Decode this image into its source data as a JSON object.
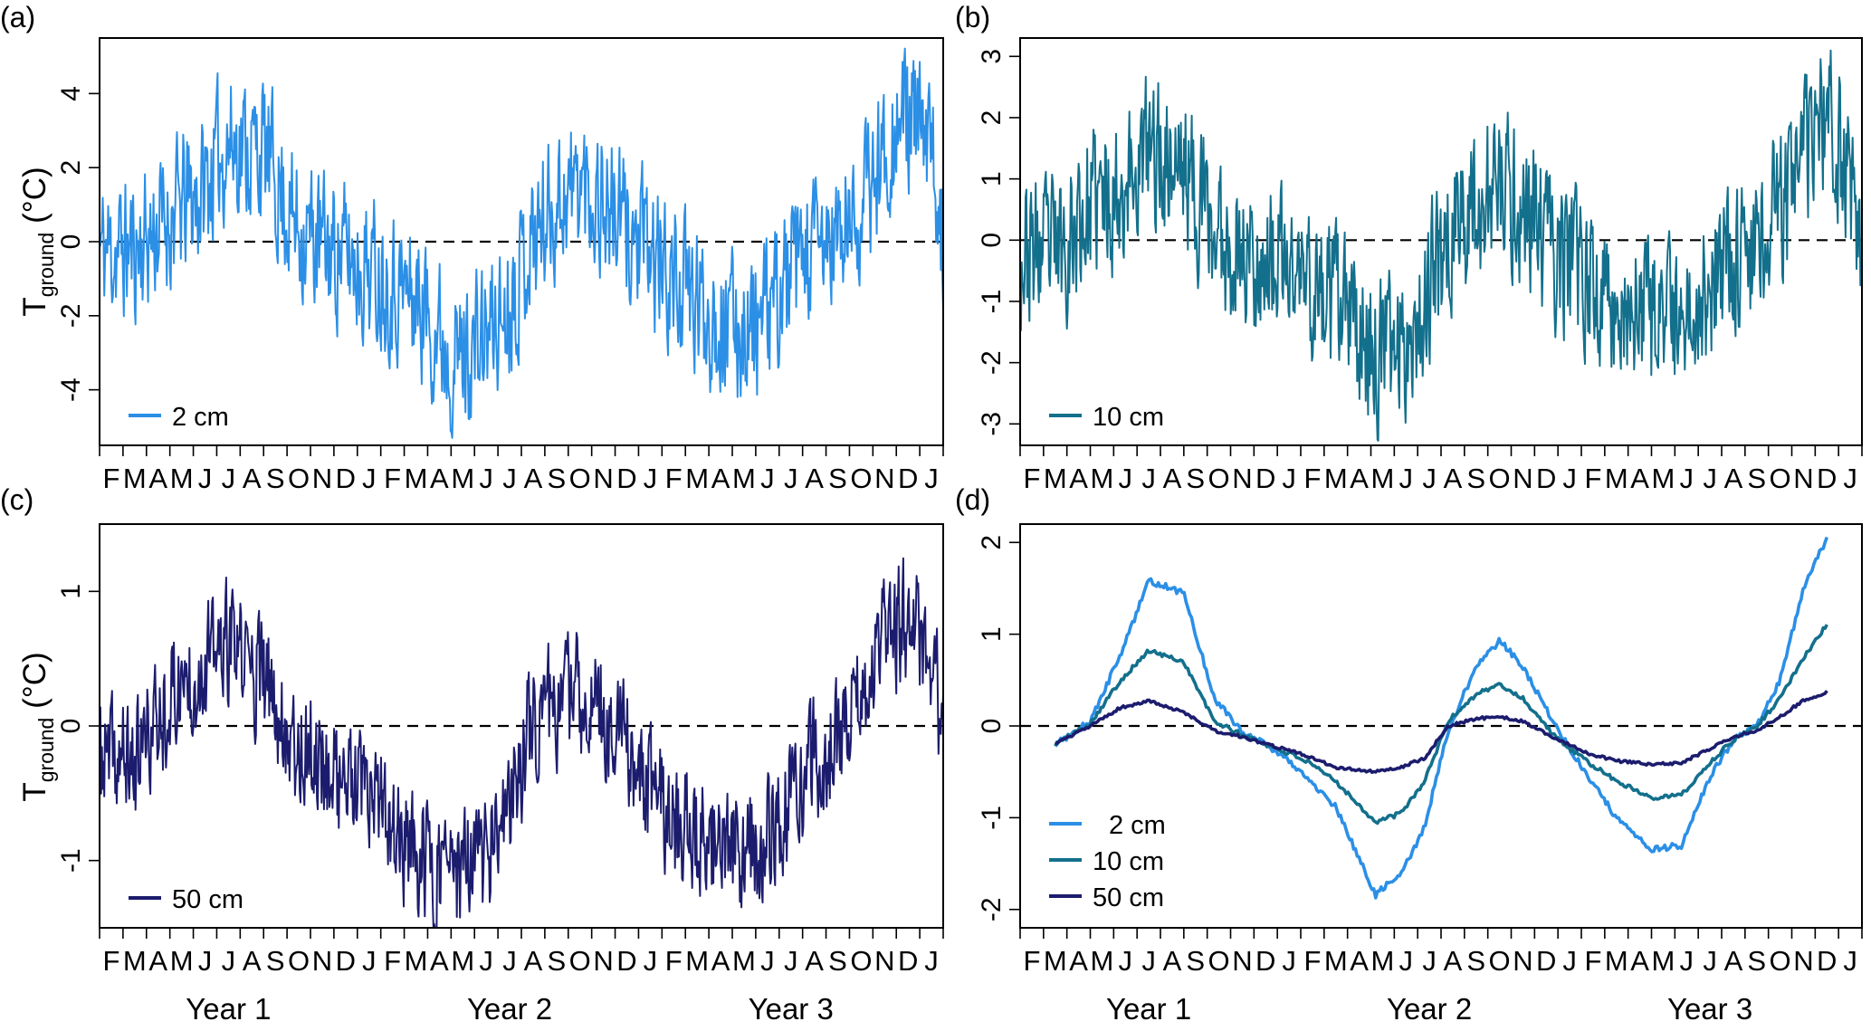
{
  "colors": {
    "d2": "#2b8fe6",
    "d10": "#13708c",
    "d50": "#1c1c6e",
    "axis": "#000000",
    "zero_line": "#000000"
  },
  "y_label": {
    "main": "T",
    "sub": "ground",
    "unit": "(°C)"
  },
  "months": [
    "F",
    "M",
    "A",
    "M",
    "J",
    "J",
    "A",
    "S",
    "O",
    "N",
    "D",
    "J",
    "F",
    "M",
    "A",
    "M",
    "J",
    "J",
    "A",
    "S",
    "O",
    "N",
    "D",
    "J",
    "F",
    "M",
    "A",
    "M",
    "J",
    "J",
    "A",
    "S",
    "O",
    "N",
    "D",
    "J"
  ],
  "years": [
    "Year 1",
    "Year 2",
    "Year 3"
  ],
  "chart_data": [
    {
      "panel": "(a)",
      "type": "line",
      "xlim": [
        0,
        36
      ],
      "ylim": [
        -5.5,
        5.5
      ],
      "yticks": [
        -4,
        -2,
        0,
        2,
        4
      ],
      "ytick_labels": [
        "-4",
        "-2",
        "0",
        "2",
        "4"
      ],
      "reference_line": 0,
      "legend": "bottom-left",
      "series": [
        {
          "name": "2 cm",
          "color": "#2b8fe6",
          "scale": 1.7,
          "seed": 11,
          "noise": 1.75,
          "x": [
            0,
            1.5,
            3,
            4.3,
            5.5,
            7,
            8.3,
            9.5,
            10.5,
            12,
            13.5,
            15.2,
            16.3,
            17.3,
            18.3,
            19.5,
            20.5,
            21.5,
            23,
            24.3,
            25.5,
            27,
            28.3,
            29.5,
            30.5,
            31.5,
            32.5,
            33.5,
            34.5,
            35.5,
            36
          ],
          "y": [
            -0.12,
            -0.12,
            0.4,
            0.78,
            1.58,
            1.45,
            0.3,
            -0.06,
            -0.2,
            -0.5,
            -0.88,
            -1.84,
            -1.6,
            -1.1,
            -0.05,
            0.65,
            0.93,
            0.65,
            -0.05,
            -0.55,
            -1.0,
            -1.35,
            -1.3,
            -0.55,
            -0.15,
            0.0,
            0.5,
            1.5,
            2.05,
            1.3,
            0.2
          ]
        }
      ]
    },
    {
      "panel": "(b)",
      "type": "line",
      "xlim": [
        0,
        36
      ],
      "ylim": [
        -3.35,
        3.3
      ],
      "yticks": [
        -3,
        -2,
        -1,
        0,
        1,
        2,
        3
      ],
      "ytick_labels": [
        "-3",
        "-2",
        "-1",
        "0",
        "1",
        "2",
        "3"
      ],
      "reference_line": 0,
      "legend": "bottom-left",
      "series": [
        {
          "name": "10 cm",
          "color": "#13708c",
          "scale": 1.75,
          "seed": 23,
          "noise": 1.1,
          "x": [
            0,
            1.5,
            3,
            4.3,
            5.5,
            7,
            8.3,
            9.5,
            10.5,
            12,
            13.5,
            15.2,
            16.3,
            17.3,
            18.3,
            19.5,
            20.5,
            21.5,
            23,
            24.3,
            25.5,
            27,
            28.3,
            29.5,
            30.5,
            31.5,
            32.5,
            33.5,
            34.5,
            35.5,
            36
          ],
          "y": [
            -0.12,
            -0.12,
            0.3,
            0.5,
            0.82,
            0.7,
            0.05,
            -0.1,
            -0.2,
            -0.35,
            -0.6,
            -1.05,
            -0.95,
            -0.6,
            0.05,
            0.35,
            0.45,
            0.3,
            -0.15,
            -0.4,
            -0.6,
            -0.78,
            -0.75,
            -0.4,
            -0.15,
            0.0,
            0.3,
            0.75,
            1.1,
            0.6,
            0.05
          ]
        }
      ]
    },
    {
      "panel": "(c)",
      "type": "line",
      "xlim": [
        0,
        36
      ],
      "ylim": [
        -1.5,
        1.5
      ],
      "yticks": [
        -1,
        0,
        1
      ],
      "ytick_labels": [
        "-1",
        "0",
        "1"
      ],
      "reference_line": 0,
      "legend": "bottom-left",
      "series": [
        {
          "name": "50 cm",
          "color": "#1c1c6e",
          "scale": 2.2,
          "seed": 37,
          "noise": 0.4,
          "x": [
            0,
            1.5,
            3,
            4.3,
            5.5,
            7,
            8.3,
            9.5,
            10.5,
            12,
            13.5,
            15.2,
            16.3,
            17.3,
            18.3,
            19.5,
            20.5,
            21.5,
            23,
            24.3,
            25.5,
            27,
            28.3,
            29.5,
            30.5,
            31.5,
            32.5,
            33.5,
            34.5,
            35.5,
            36
          ],
          "y": [
            -0.12,
            -0.12,
            0.1,
            0.2,
            0.27,
            0.15,
            -0.05,
            -0.12,
            -0.2,
            -0.3,
            -0.45,
            -0.5,
            -0.45,
            -0.35,
            0.0,
            0.08,
            0.1,
            0.05,
            -0.15,
            -0.3,
            -0.38,
            -0.42,
            -0.4,
            -0.25,
            -0.12,
            -0.05,
            0.1,
            0.28,
            0.37,
            0.2,
            0.0
          ]
        }
      ]
    },
    {
      "panel": "(d)",
      "type": "line",
      "xlim": [
        0,
        36
      ],
      "ylim": [
        -2.2,
        2.2
      ],
      "yticks": [
        -2,
        -1,
        0,
        1,
        2
      ],
      "ytick_labels": [
        "-2",
        "-1",
        "0",
        "1",
        "2"
      ],
      "reference_line": 0,
      "legend": "bottom-left",
      "series": [
        {
          "name": "2 cm",
          "color": "#2b8fe6",
          "x": [
            1.5,
            3,
            4.3,
            5.5,
            7,
            8.3,
            9.5,
            10.5,
            12,
            13.5,
            15.2,
            16.3,
            17.3,
            18.3,
            19.5,
            20.5,
            21.5,
            23,
            24.3,
            25.5,
            27,
            28.3,
            29.5,
            30.5,
            31.5,
            32.5,
            33.5,
            34.5
          ],
          "y": [
            -0.2,
            0.05,
            0.78,
            1.58,
            1.45,
            0.3,
            -0.06,
            -0.2,
            -0.5,
            -0.88,
            -1.84,
            -1.6,
            -1.1,
            -0.05,
            0.65,
            0.93,
            0.65,
            -0.05,
            -0.55,
            -1.0,
            -1.35,
            -1.3,
            -0.55,
            -0.15,
            0.0,
            0.5,
            1.5,
            2.05
          ]
        },
        {
          "name": "10 cm",
          "color": "#13708c",
          "x": [
            1.5,
            3,
            4.3,
            5.5,
            7,
            8.3,
            9.5,
            10.5,
            12,
            13.5,
            15.2,
            16.3,
            17.3,
            18.3,
            19.5,
            20.5,
            21.5,
            23,
            24.3,
            25.5,
            27,
            28.3,
            29.5,
            30.5,
            31.5,
            32.5,
            33.5,
            34.5
          ],
          "y": [
            -0.2,
            0.03,
            0.5,
            0.82,
            0.7,
            0.05,
            -0.1,
            -0.2,
            -0.35,
            -0.6,
            -1.05,
            -0.95,
            -0.6,
            0.05,
            0.35,
            0.45,
            0.3,
            -0.15,
            -0.4,
            -0.6,
            -0.78,
            -0.75,
            -0.4,
            -0.15,
            0.0,
            0.3,
            0.75,
            1.1
          ]
        },
        {
          "name": "50 cm",
          "color": "#1c1c6e",
          "x": [
            1.5,
            3,
            4.3,
            5.5,
            7,
            8.3,
            9.5,
            10.5,
            12,
            13.5,
            15.2,
            16.3,
            17.3,
            18.3,
            19.5,
            20.5,
            21.5,
            23,
            24.3,
            25.5,
            27,
            28.3,
            29.5,
            30.5,
            31.5,
            32.5,
            33.5,
            34.5
          ],
          "y": [
            -0.2,
            0.0,
            0.2,
            0.27,
            0.15,
            -0.05,
            -0.12,
            -0.2,
            -0.3,
            -0.45,
            -0.5,
            -0.45,
            -0.35,
            0.0,
            0.08,
            0.1,
            0.05,
            -0.15,
            -0.3,
            -0.38,
            -0.42,
            -0.4,
            -0.25,
            -0.12,
            -0.05,
            0.1,
            0.28,
            0.37
          ]
        }
      ]
    }
  ]
}
